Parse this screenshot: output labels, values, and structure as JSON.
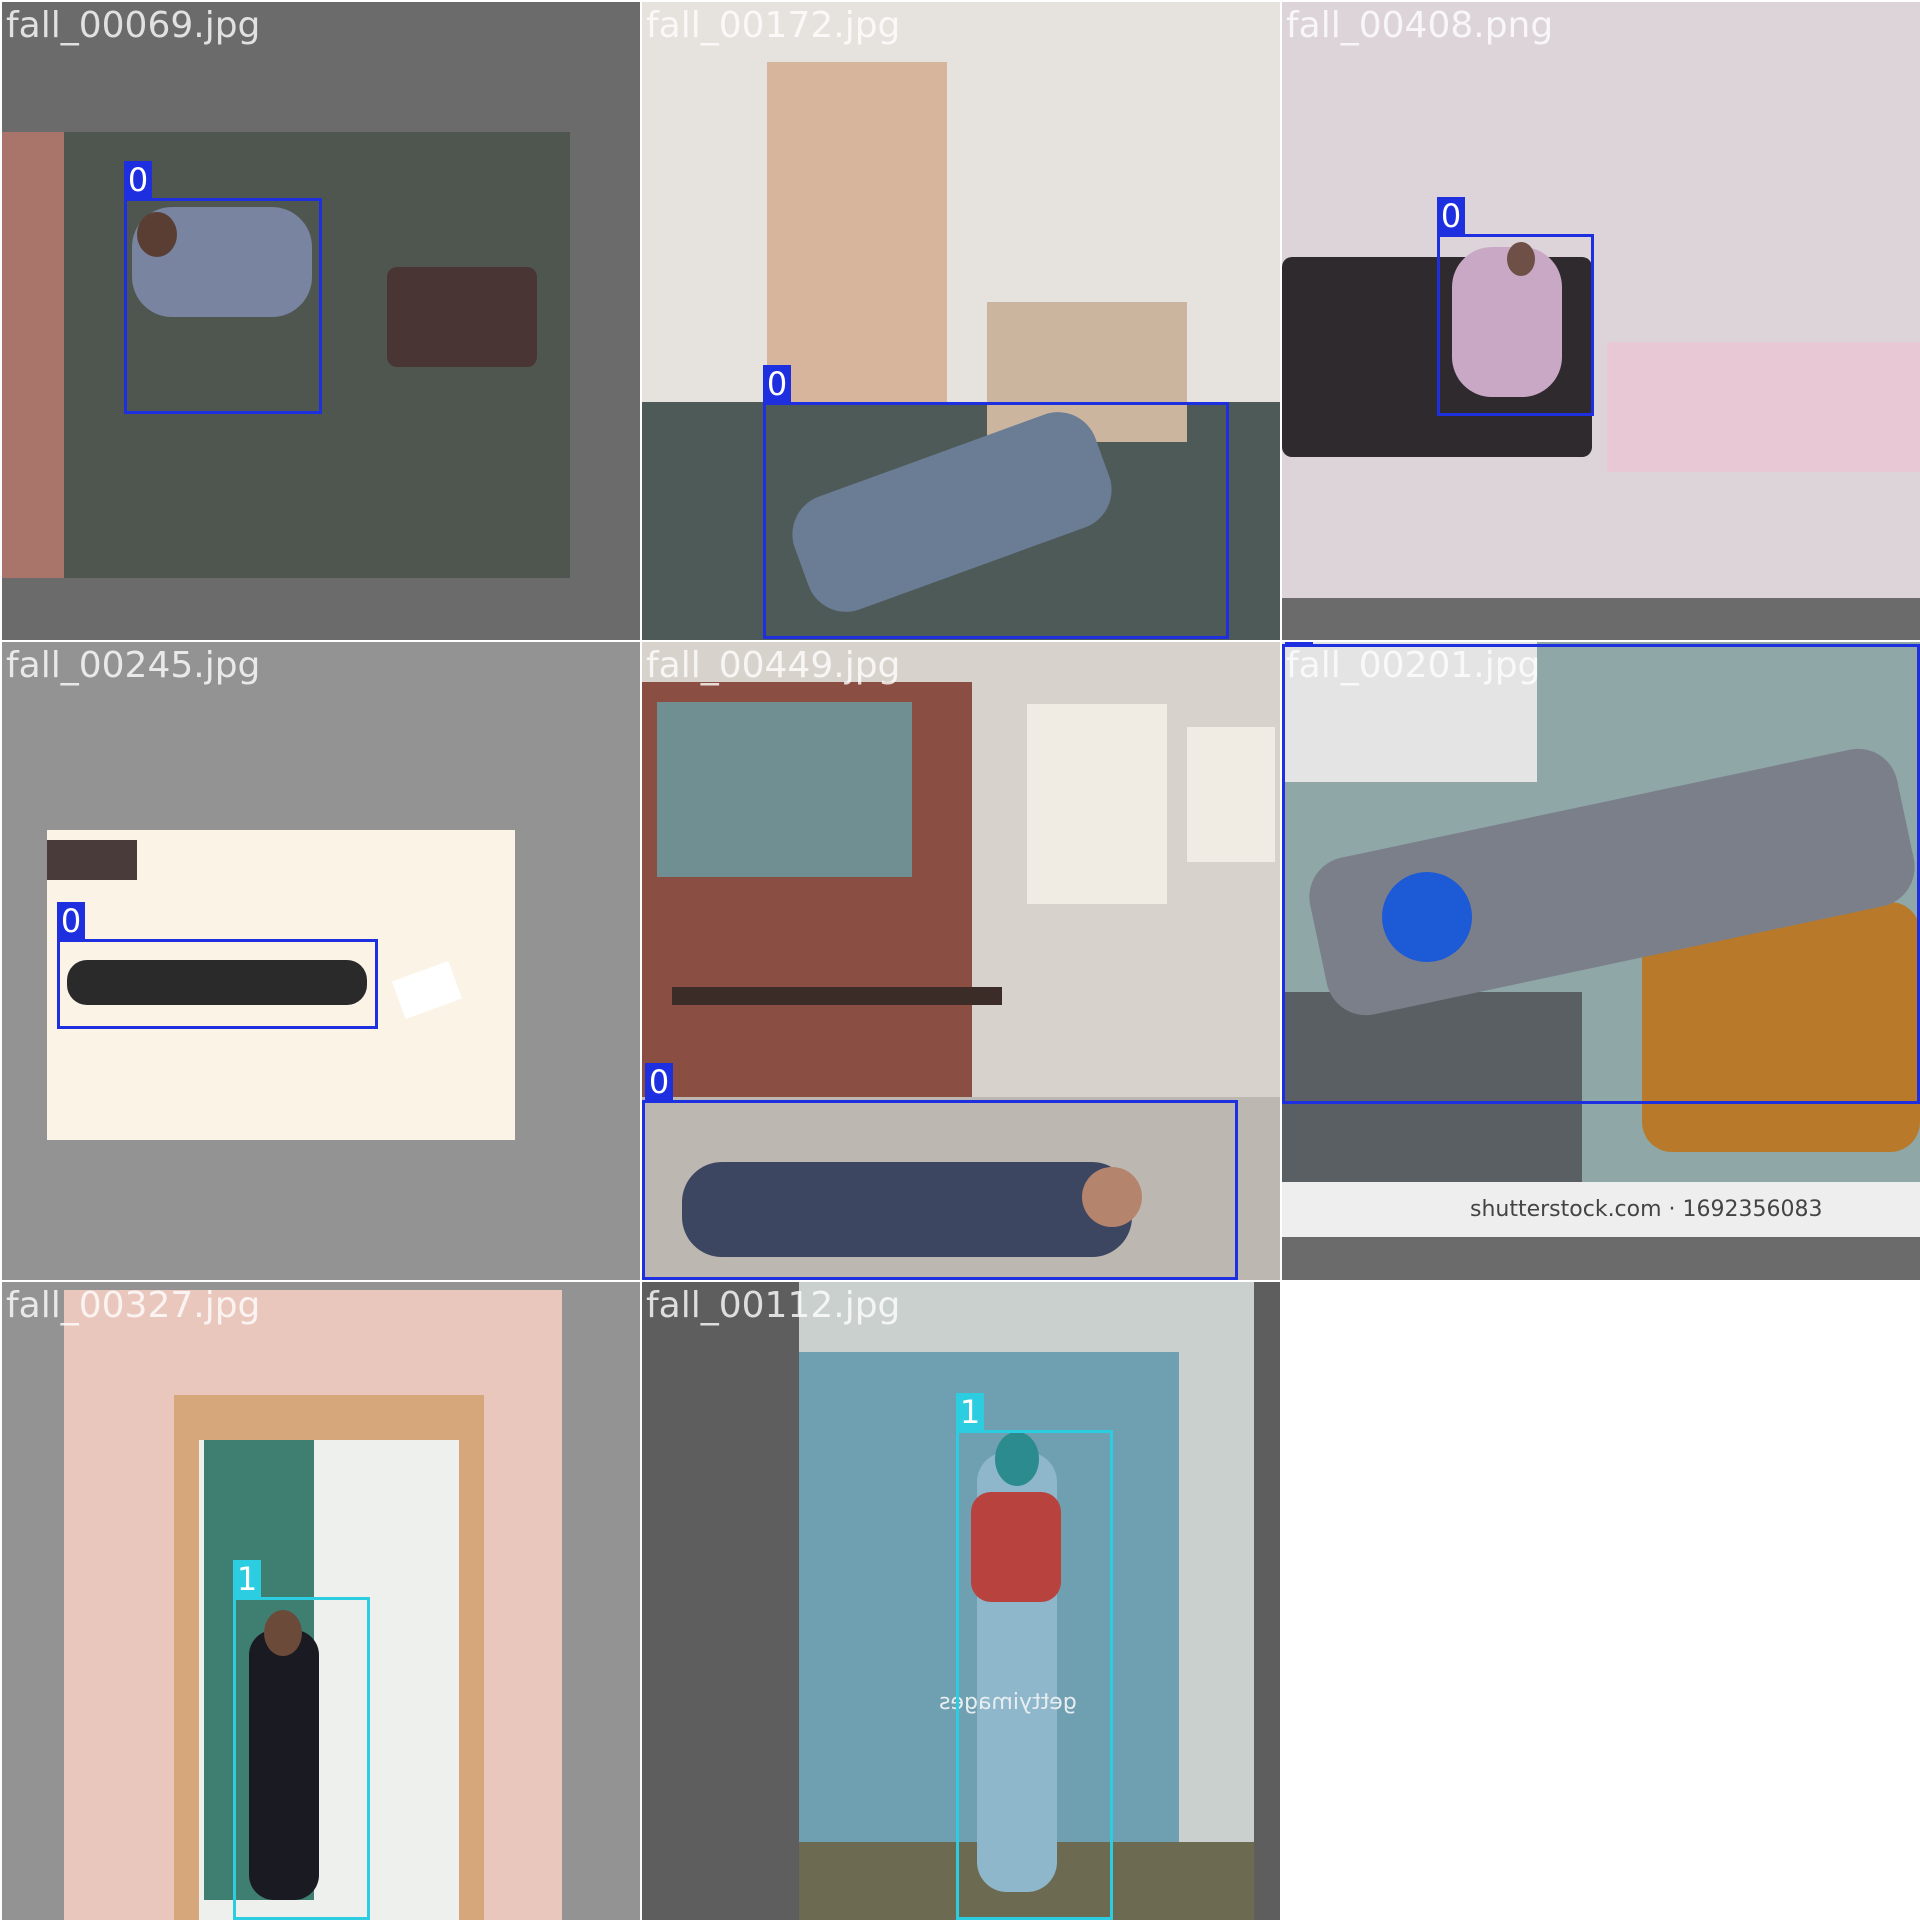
{
  "tiles": [
    {
      "filename": "fall_00069.jpg",
      "label": "0"
    },
    {
      "filename": "fall_00172.jpg",
      "label": "0"
    },
    {
      "filename": "fall_00408.png",
      "label": "0"
    },
    {
      "filename": "fall_00245.jpg",
      "label": "0"
    },
    {
      "filename": "fall_00449.jpg",
      "label": "0"
    },
    {
      "filename": "fall_00201.jpg",
      "label": "0",
      "watermark": "shutterstock.com · 1692356083"
    },
    {
      "filename": "fall_00327.jpg",
      "label": "1"
    },
    {
      "filename": "fall_00112.jpg",
      "label": "1",
      "watermark": "gettyimages"
    }
  ],
  "colors": {
    "class_0": "#1e2fe0",
    "class_1": "#2ccde0",
    "padding": "#6a6a6a"
  }
}
